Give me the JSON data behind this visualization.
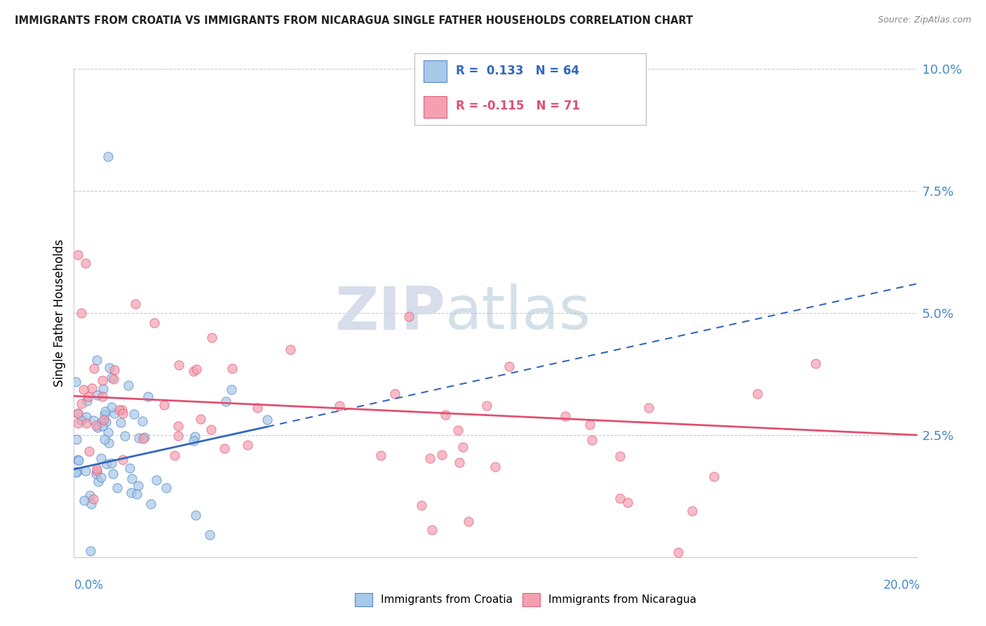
{
  "title": "IMMIGRANTS FROM CROATIA VS IMMIGRANTS FROM NICARAGUA SINGLE FATHER HOUSEHOLDS CORRELATION CHART",
  "source": "Source: ZipAtlas.com",
  "ylabel": "Single Father Households",
  "x_min": 0.0,
  "x_max": 0.2,
  "y_min": 0.0,
  "y_max": 0.1,
  "yticks": [
    0.025,
    0.05,
    0.075,
    0.1
  ],
  "ytick_labels": [
    "2.5%",
    "5.0%",
    "7.5%",
    "10.0%"
  ],
  "croatia_color": "#a8c8e8",
  "nicaragua_color": "#f4a0b0",
  "croatia_edge": "#5588cc",
  "nicaragua_edge": "#e06080",
  "croatia_line_color": "#3366bb",
  "nicaragua_line_color": "#e05070",
  "watermark_zip": "ZIP",
  "watermark_atlas": "atlas",
  "legend_label_croatia": "Immigrants from Croatia",
  "legend_label_nicaragua": "Immigrants from Nicaragua",
  "croatia_R": 0.133,
  "croatia_N": 64,
  "nicaragua_R": -0.115,
  "nicaragua_N": 71,
  "cro_line_x0": 0.0,
  "cro_line_y0": 0.018,
  "cro_line_x1": 0.2,
  "cro_line_y1": 0.056,
  "nic_line_x0": 0.0,
  "nic_line_y0": 0.033,
  "nic_line_x1": 0.2,
  "nic_line_y1": 0.025
}
